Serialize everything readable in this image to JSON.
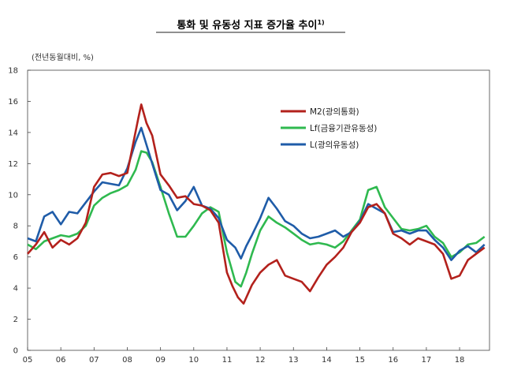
{
  "chart_data": {
    "type": "line",
    "title": "통화 및 유동성 지표 증가율 추이",
    "title_superscript": "1)",
    "unit_label": "(전년동월대비, %)",
    "xlabel": "",
    "ylabel": "",
    "ylim": [
      0,
      18
    ],
    "xlim": [
      2005.0,
      2018.9
    ],
    "y_ticks": [
      0,
      2,
      4,
      6,
      8,
      10,
      12,
      14,
      16,
      18
    ],
    "x_ticks": [
      {
        "x": 2005,
        "label": "05"
      },
      {
        "x": 2006,
        "label": "06"
      },
      {
        "x": 2007,
        "label": "07"
      },
      {
        "x": 2008,
        "label": "08"
      },
      {
        "x": 2009,
        "label": "09"
      },
      {
        "x": 2010,
        "label": "10"
      },
      {
        "x": 2011,
        "label": "11"
      },
      {
        "x": 2012,
        "label": "12"
      },
      {
        "x": 2013,
        "label": "13"
      },
      {
        "x": 2014,
        "label": "14"
      },
      {
        "x": 2015,
        "label": "15"
      },
      {
        "x": 2016,
        "label": "16"
      },
      {
        "x": 2017,
        "label": "17"
      },
      {
        "x": 2018,
        "label": "18"
      }
    ],
    "grid": false,
    "legend_position": "top-right",
    "series": [
      {
        "name": "M2(광의통화)",
        "color": "#b3211c",
        "points": [
          [
            2005.0,
            6.2
          ],
          [
            2005.25,
            6.8
          ],
          [
            2005.5,
            7.6
          ],
          [
            2005.75,
            6.6
          ],
          [
            2006.0,
            7.1
          ],
          [
            2006.25,
            6.8
          ],
          [
            2006.5,
            7.2
          ],
          [
            2006.75,
            8.2
          ],
          [
            2007.0,
            10.5
          ],
          [
            2007.25,
            11.3
          ],
          [
            2007.5,
            11.4
          ],
          [
            2007.75,
            11.2
          ],
          [
            2008.0,
            11.4
          ],
          [
            2008.17,
            13.2
          ],
          [
            2008.33,
            14.9
          ],
          [
            2008.42,
            15.8
          ],
          [
            2008.58,
            14.6
          ],
          [
            2008.75,
            13.8
          ],
          [
            2009.0,
            11.3
          ],
          [
            2009.25,
            10.6
          ],
          [
            2009.5,
            9.8
          ],
          [
            2009.75,
            9.9
          ],
          [
            2010.0,
            9.4
          ],
          [
            2010.25,
            9.3
          ],
          [
            2010.5,
            9.0
          ],
          [
            2010.75,
            8.2
          ],
          [
            2011.0,
            5.0
          ],
          [
            2011.17,
            4.1
          ],
          [
            2011.33,
            3.4
          ],
          [
            2011.5,
            3.0
          ],
          [
            2011.75,
            4.2
          ],
          [
            2012.0,
            5.0
          ],
          [
            2012.25,
            5.5
          ],
          [
            2012.5,
            5.8
          ],
          [
            2012.75,
            4.8
          ],
          [
            2013.0,
            4.6
          ],
          [
            2013.25,
            4.4
          ],
          [
            2013.5,
            3.8
          ],
          [
            2013.75,
            4.7
          ],
          [
            2014.0,
            5.5
          ],
          [
            2014.25,
            6.0
          ],
          [
            2014.5,
            6.6
          ],
          [
            2014.75,
            7.6
          ],
          [
            2015.0,
            8.2
          ],
          [
            2015.25,
            9.2
          ],
          [
            2015.5,
            9.4
          ],
          [
            2015.75,
            8.8
          ],
          [
            2016.0,
            7.5
          ],
          [
            2016.25,
            7.2
          ],
          [
            2016.5,
            6.8
          ],
          [
            2016.75,
            7.2
          ],
          [
            2017.0,
            7.0
          ],
          [
            2017.25,
            6.8
          ],
          [
            2017.5,
            6.2
          ],
          [
            2017.75,
            4.6
          ],
          [
            2018.0,
            4.8
          ],
          [
            2018.25,
            5.8
          ],
          [
            2018.5,
            6.2
          ],
          [
            2018.75,
            6.6
          ]
        ]
      },
      {
        "name": "Lf(금융기관유동성)",
        "color": "#2fb94f",
        "points": [
          [
            2005.0,
            6.8
          ],
          [
            2005.25,
            6.5
          ],
          [
            2005.5,
            7.0
          ],
          [
            2005.75,
            7.2
          ],
          [
            2006.0,
            7.4
          ],
          [
            2006.25,
            7.3
          ],
          [
            2006.5,
            7.5
          ],
          [
            2006.75,
            8.0
          ],
          [
            2007.0,
            9.3
          ],
          [
            2007.25,
            9.8
          ],
          [
            2007.5,
            10.1
          ],
          [
            2007.75,
            10.3
          ],
          [
            2008.0,
            10.6
          ],
          [
            2008.25,
            11.6
          ],
          [
            2008.42,
            12.8
          ],
          [
            2008.58,
            12.7
          ],
          [
            2008.75,
            12.1
          ],
          [
            2009.0,
            10.5
          ],
          [
            2009.25,
            8.8
          ],
          [
            2009.5,
            7.3
          ],
          [
            2009.75,
            7.3
          ],
          [
            2010.0,
            8.0
          ],
          [
            2010.25,
            8.8
          ],
          [
            2010.5,
            9.2
          ],
          [
            2010.75,
            8.9
          ],
          [
            2011.0,
            6.3
          ],
          [
            2011.25,
            4.4
          ],
          [
            2011.42,
            4.1
          ],
          [
            2011.58,
            5.0
          ],
          [
            2011.75,
            6.2
          ],
          [
            2012.0,
            7.7
          ],
          [
            2012.25,
            8.6
          ],
          [
            2012.5,
            8.2
          ],
          [
            2012.75,
            7.9
          ],
          [
            2013.0,
            7.5
          ],
          [
            2013.25,
            7.1
          ],
          [
            2013.5,
            6.8
          ],
          [
            2013.75,
            6.9
          ],
          [
            2014.0,
            6.8
          ],
          [
            2014.25,
            6.6
          ],
          [
            2014.5,
            7.0
          ],
          [
            2014.75,
            7.7
          ],
          [
            2015.0,
            8.4
          ],
          [
            2015.25,
            10.3
          ],
          [
            2015.5,
            10.5
          ],
          [
            2015.75,
            9.2
          ],
          [
            2016.0,
            8.5
          ],
          [
            2016.25,
            7.8
          ],
          [
            2016.5,
            7.7
          ],
          [
            2016.75,
            7.8
          ],
          [
            2017.0,
            8.0
          ],
          [
            2017.25,
            7.3
          ],
          [
            2017.5,
            6.9
          ],
          [
            2017.75,
            6.0
          ],
          [
            2018.0,
            6.3
          ],
          [
            2018.25,
            6.8
          ],
          [
            2018.5,
            6.9
          ],
          [
            2018.75,
            7.3
          ]
        ]
      },
      {
        "name": "L(광의유동성)",
        "color": "#1f5ca8",
        "points": [
          [
            2005.0,
            7.2
          ],
          [
            2005.25,
            7.0
          ],
          [
            2005.5,
            8.6
          ],
          [
            2005.75,
            8.9
          ],
          [
            2006.0,
            8.1
          ],
          [
            2006.25,
            8.9
          ],
          [
            2006.5,
            8.8
          ],
          [
            2006.75,
            9.5
          ],
          [
            2007.0,
            10.2
          ],
          [
            2007.25,
            10.8
          ],
          [
            2007.5,
            10.7
          ],
          [
            2007.75,
            10.6
          ],
          [
            2008.0,
            11.7
          ],
          [
            2008.25,
            13.4
          ],
          [
            2008.42,
            14.3
          ],
          [
            2008.58,
            13.2
          ],
          [
            2008.75,
            12.0
          ],
          [
            2009.0,
            10.3
          ],
          [
            2009.25,
            10.0
          ],
          [
            2009.5,
            9.0
          ],
          [
            2009.75,
            9.6
          ],
          [
            2010.0,
            10.5
          ],
          [
            2010.25,
            9.3
          ],
          [
            2010.5,
            9.1
          ],
          [
            2010.75,
            8.5
          ],
          [
            2011.0,
            7.1
          ],
          [
            2011.25,
            6.6
          ],
          [
            2011.42,
            5.9
          ],
          [
            2011.58,
            6.7
          ],
          [
            2011.75,
            7.4
          ],
          [
            2012.0,
            8.5
          ],
          [
            2012.25,
            9.8
          ],
          [
            2012.5,
            9.1
          ],
          [
            2012.75,
            8.3
          ],
          [
            2013.0,
            8.0
          ],
          [
            2013.25,
            7.5
          ],
          [
            2013.5,
            7.2
          ],
          [
            2013.75,
            7.3
          ],
          [
            2014.0,
            7.5
          ],
          [
            2014.25,
            7.7
          ],
          [
            2014.5,
            7.3
          ],
          [
            2014.75,
            7.6
          ],
          [
            2015.0,
            8.3
          ],
          [
            2015.25,
            9.4
          ],
          [
            2015.5,
            9.1
          ],
          [
            2015.75,
            8.8
          ],
          [
            2016.0,
            7.6
          ],
          [
            2016.25,
            7.7
          ],
          [
            2016.5,
            7.5
          ],
          [
            2016.75,
            7.7
          ],
          [
            2017.0,
            7.7
          ],
          [
            2017.25,
            7.1
          ],
          [
            2017.5,
            6.6
          ],
          [
            2017.75,
            5.8
          ],
          [
            2018.0,
            6.4
          ],
          [
            2018.25,
            6.7
          ],
          [
            2018.5,
            6.3
          ],
          [
            2018.75,
            6.8
          ]
        ]
      }
    ]
  }
}
